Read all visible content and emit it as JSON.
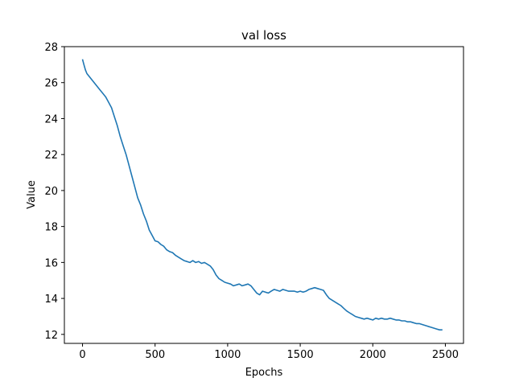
{
  "chart_data": {
    "type": "line",
    "title": "val loss",
    "xlabel": "Epochs",
    "ylabel": "Value",
    "xlim": [
      -125,
      2625
    ],
    "ylim": [
      11.5,
      28
    ],
    "xticks": [
      0,
      500,
      1000,
      1500,
      2000,
      2500
    ],
    "yticks": [
      12,
      14,
      16,
      18,
      20,
      22,
      24,
      26,
      28
    ],
    "grid": false,
    "legend": "none",
    "series": [
      {
        "color": "#1f77b4",
        "x": [
          0,
          10,
          20,
          30,
          50,
          80,
          120,
          160,
          180,
          200,
          220,
          240,
          260,
          280,
          300,
          320,
          340,
          360,
          380,
          400,
          420,
          440,
          460,
          480,
          500,
          520,
          540,
          560,
          580,
          600,
          620,
          640,
          660,
          680,
          700,
          720,
          740,
          760,
          780,
          800,
          820,
          840,
          860,
          880,
          900,
          920,
          940,
          960,
          980,
          1000,
          1020,
          1040,
          1060,
          1080,
          1100,
          1120,
          1140,
          1160,
          1180,
          1200,
          1220,
          1240,
          1260,
          1280,
          1300,
          1320,
          1340,
          1360,
          1380,
          1400,
          1420,
          1440,
          1460,
          1480,
          1500,
          1520,
          1540,
          1560,
          1580,
          1600,
          1620,
          1640,
          1660,
          1680,
          1700,
          1720,
          1740,
          1760,
          1780,
          1800,
          1820,
          1840,
          1860,
          1880,
          1900,
          1920,
          1940,
          1960,
          1980,
          2000,
          2020,
          2040,
          2060,
          2080,
          2100,
          2120,
          2140,
          2160,
          2180,
          2200,
          2220,
          2240,
          2260,
          2280,
          2300,
          2320,
          2340,
          2360,
          2380,
          2400,
          2420,
          2440,
          2460,
          2480
        ],
        "values": [
          27.3,
          27.0,
          26.7,
          26.5,
          26.3,
          26.0,
          25.6,
          25.2,
          24.9,
          24.6,
          24.1,
          23.6,
          23.0,
          22.5,
          22.0,
          21.4,
          20.8,
          20.2,
          19.6,
          19.2,
          18.7,
          18.3,
          17.8,
          17.5,
          17.2,
          17.15,
          17.0,
          16.9,
          16.7,
          16.6,
          16.55,
          16.4,
          16.3,
          16.2,
          16.1,
          16.05,
          16.0,
          16.1,
          16.0,
          16.05,
          15.95,
          16.0,
          15.9,
          15.8,
          15.6,
          15.3,
          15.1,
          15.0,
          14.9,
          14.85,
          14.8,
          14.7,
          14.75,
          14.8,
          14.7,
          14.75,
          14.8,
          14.7,
          14.5,
          14.3,
          14.2,
          14.4,
          14.35,
          14.3,
          14.4,
          14.5,
          14.45,
          14.4,
          14.5,
          14.45,
          14.4,
          14.4,
          14.4,
          14.35,
          14.4,
          14.35,
          14.4,
          14.5,
          14.55,
          14.6,
          14.55,
          14.5,
          14.45,
          14.2,
          14.0,
          13.9,
          13.8,
          13.7,
          13.6,
          13.45,
          13.3,
          13.2,
          13.1,
          13.0,
          12.95,
          12.9,
          12.85,
          12.9,
          12.85,
          12.8,
          12.9,
          12.85,
          12.9,
          12.85,
          12.85,
          12.9,
          12.85,
          12.8,
          12.8,
          12.75,
          12.75,
          12.7,
          12.7,
          12.65,
          12.6,
          12.6,
          12.55,
          12.5,
          12.45,
          12.4,
          12.35,
          12.3,
          12.25,
          12.25
        ]
      }
    ]
  }
}
